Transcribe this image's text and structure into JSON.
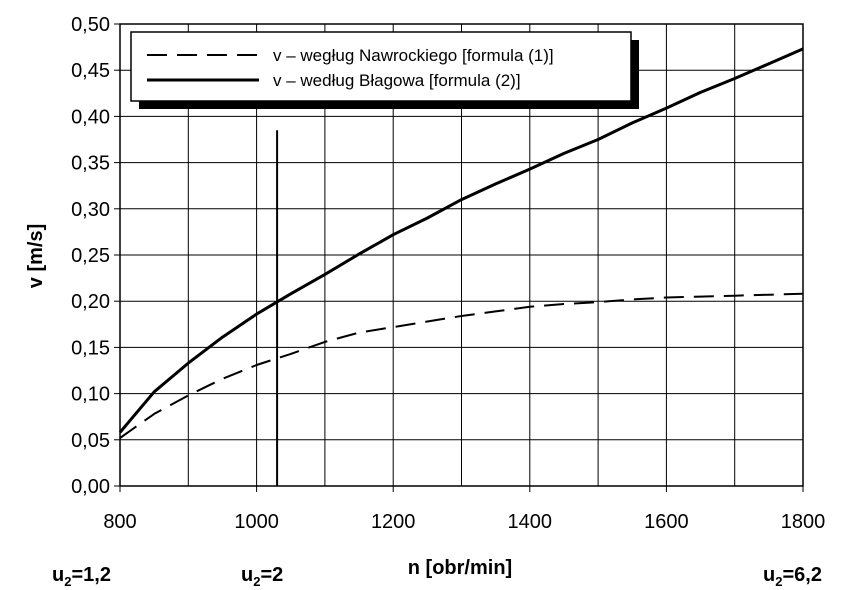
{
  "chart_data": {
    "type": "line",
    "xlabel": "n [obr/min]",
    "ylabel": "v [m/s]",
    "xlim": [
      800,
      1800
    ],
    "ylim": [
      0,
      0.5
    ],
    "x_ticks": [
      800,
      1000,
      1200,
      1400,
      1600,
      1800
    ],
    "x_tick_labels": [
      "800",
      "1000",
      "1200",
      "1400",
      "1600",
      "1800"
    ],
    "y_ticks": [
      0,
      0.05,
      0.1,
      0.15,
      0.2,
      0.25,
      0.3,
      0.35,
      0.4,
      0.45,
      0.5
    ],
    "y_tick_labels": [
      "0,00",
      "0,05",
      "0,10",
      "0,15",
      "0,20",
      "0,25",
      "0,30",
      "0,35",
      "0,40",
      "0,45",
      "0,50"
    ],
    "grid": true,
    "legend_position": "top-left",
    "series": [
      {
        "name": "v – wegług Nawrockiego [formula (1)]",
        "style": "dashed",
        "color": "#000000",
        "x": [
          800,
          850,
          900,
          950,
          1000,
          1050,
          1100,
          1150,
          1200,
          1250,
          1300,
          1350,
          1400,
          1450,
          1500,
          1550,
          1600,
          1650,
          1700,
          1750,
          1800
        ],
        "y": [
          0.052,
          0.078,
          0.098,
          0.116,
          0.131,
          0.143,
          0.156,
          0.166,
          0.172,
          0.178,
          0.184,
          0.189,
          0.194,
          0.197,
          0.199,
          0.202,
          0.204,
          0.205,
          0.206,
          0.207,
          0.208
        ]
      },
      {
        "name": "v – według Błagowa [formula (2)]",
        "style": "solid",
        "color": "#000000",
        "x": [
          800,
          850,
          900,
          950,
          1000,
          1050,
          1100,
          1150,
          1200,
          1250,
          1300,
          1350,
          1400,
          1450,
          1500,
          1550,
          1600,
          1650,
          1700,
          1750,
          1800
        ],
        "y": [
          0.058,
          0.102,
          0.133,
          0.161,
          0.186,
          0.208,
          0.229,
          0.251,
          0.272,
          0.29,
          0.31,
          0.327,
          0.343,
          0.36,
          0.375,
          0.393,
          0.409,
          0.426,
          0.441,
          0.457,
          0.473
        ]
      }
    ],
    "vertical_marker": {
      "x": 1030,
      "y_top": 0.385
    },
    "bottom_labels": [
      {
        "base": "u",
        "sub": "2",
        "rest": "=1,2"
      },
      {
        "base": "u",
        "sub": "2",
        "rest": "=2"
      },
      {
        "base": "u",
        "sub": "2",
        "rest": "=6,2"
      }
    ]
  }
}
